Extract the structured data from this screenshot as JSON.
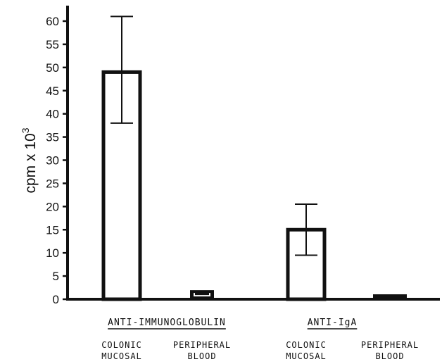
{
  "chart_data": {
    "type": "bar",
    "title": "",
    "ylabel": "cpm x 10",
    "ylabel_superscript": "3",
    "ylim": [
      0,
      62
    ],
    "yticks": [
      "0",
      "5",
      "10",
      "15",
      "20",
      "25",
      "30",
      "35",
      "40",
      "45",
      "50",
      "55",
      "60"
    ],
    "groups": [
      {
        "label": "ANTI-IMMUNOGLOBULIN",
        "bars": [
          {
            "label_line1": "COLONIC",
            "label_line2": "MUCOSAL",
            "value": 49,
            "err_low": 38,
            "err_high": 61,
            "filled": false
          },
          {
            "label_line1": "PERIPHERAL",
            "label_line2": "BLOOD",
            "value": 1.5,
            "err_low": null,
            "err_high": null,
            "filled": true
          }
        ]
      },
      {
        "label": "ANTI-IgA",
        "bars": [
          {
            "label_line1": "COLONIC",
            "label_line2": "MUCOSAL",
            "value": 15,
            "err_low": 9.5,
            "err_high": 20.5,
            "filled": false
          },
          {
            "label_line1": "PERIPHERAL",
            "label_line2": "BLOOD",
            "value": 0.5,
            "err_low": null,
            "err_high": null,
            "filled": true
          }
        ]
      }
    ],
    "grid": false,
    "colors": {
      "ink": "#111111",
      "background": "#ffffff"
    }
  }
}
